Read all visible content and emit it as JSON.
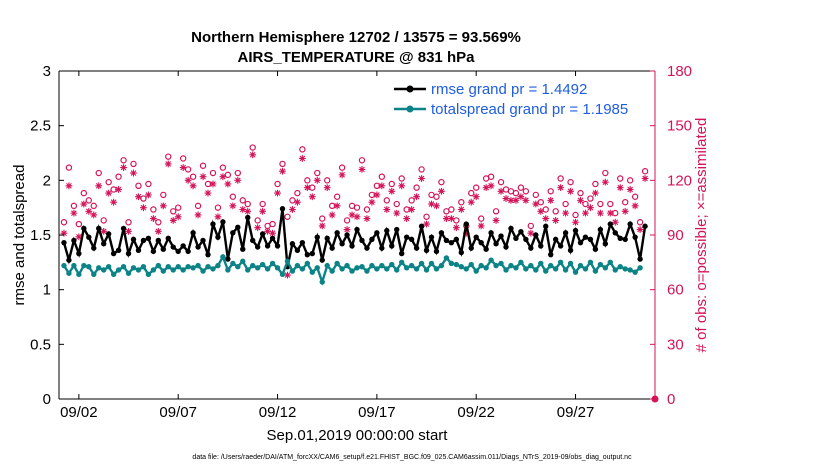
{
  "chart_data": {
    "type": "line",
    "title": "Northern Hemisphere 12702 / 13575 = 93.569%",
    "subtitle": "AIRS_TEMPERATURE @ 831 hPa",
    "xlabel": "Sep.01,2019 00:00:00 start",
    "ylabel_left": "rmse and totalspread",
    "ylabel_right": "# of obs: o=possible; ×=assimilated",
    "footnote": "data file: /Users/raeder/DAI/ATM_forcXX/CAM6_setup/f.e21.FHIST_BGC.f09_025.CAM6assim.011/Diags_NTrS_2019-09/obs_diag_output.nc",
    "x_tick_labels": [
      "09/02",
      "09/07",
      "09/12",
      "09/17",
      "09/22",
      "09/27"
    ],
    "x_tick_days": [
      2,
      7,
      12,
      17,
      22,
      27
    ],
    "xlim_days": [
      1.0,
      31.0
    ],
    "ylim_left": [
      0,
      3
    ],
    "yticks_left": [
      "0",
      "0.5",
      "1",
      "1.5",
      "2",
      "2.5",
      "3"
    ],
    "ylim_right": [
      0,
      180
    ],
    "yticks_right": [
      "0",
      "30",
      "60",
      "90",
      "120",
      "150",
      "180"
    ],
    "x_days": [
      1.25,
      1.5,
      1.75,
      2.0,
      2.25,
      2.5,
      2.75,
      3.0,
      3.25,
      3.5,
      3.75,
      4.0,
      4.25,
      4.5,
      4.75,
      5.0,
      5.25,
      5.5,
      5.75,
      6.0,
      6.25,
      6.5,
      6.75,
      7.0,
      7.25,
      7.5,
      7.75,
      8.0,
      8.25,
      8.5,
      8.75,
      9.0,
      9.25,
      9.5,
      9.75,
      10.0,
      10.25,
      10.5,
      10.75,
      11.0,
      11.25,
      11.5,
      11.75,
      12.0,
      12.25,
      12.5,
      12.75,
      13.0,
      13.25,
      13.5,
      13.75,
      14.0,
      14.25,
      14.5,
      14.75,
      15.0,
      15.25,
      15.5,
      15.75,
      16.0,
      16.25,
      16.5,
      16.75,
      17.0,
      17.25,
      17.5,
      17.75,
      18.0,
      18.25,
      18.5,
      18.75,
      19.0,
      19.25,
      19.5,
      19.75,
      20.0,
      20.25,
      20.5,
      20.75,
      21.0,
      21.25,
      21.5,
      21.75,
      22.0,
      22.25,
      22.5,
      22.75,
      23.0,
      23.25,
      23.5,
      23.75,
      24.0,
      24.25,
      24.5,
      24.75,
      25.0,
      25.25,
      25.5,
      25.75,
      26.0,
      26.25,
      26.5,
      26.75,
      27.0,
      27.25,
      27.5,
      27.75,
      28.0,
      28.25,
      28.5,
      28.75,
      29.0,
      29.25,
      29.5,
      29.75,
      30.0,
      30.25,
      30.5,
      30.75
    ],
    "series": [
      {
        "name": "rmse grand pr = 1.4492",
        "color": "#000000",
        "axis": "left",
        "marker": "dot",
        "values": [
          1.43,
          1.27,
          1.45,
          1.33,
          1.56,
          1.48,
          1.38,
          1.56,
          1.42,
          1.51,
          1.33,
          1.36,
          1.56,
          1.33,
          1.46,
          1.36,
          1.45,
          1.47,
          1.35,
          1.45,
          1.37,
          1.47,
          1.39,
          1.35,
          1.4,
          1.35,
          1.52,
          1.39,
          1.45,
          1.32,
          1.6,
          1.48,
          1.62,
          1.28,
          1.52,
          1.57,
          1.37,
          1.66,
          1.45,
          1.39,
          1.51,
          1.4,
          1.47,
          1.4,
          1.74,
          1.21,
          1.42,
          1.36,
          1.43,
          1.32,
          1.33,
          1.48,
          1.27,
          1.47,
          1.38,
          1.52,
          1.42,
          1.5,
          1.4,
          1.55,
          1.45,
          1.38,
          1.46,
          1.52,
          1.38,
          1.54,
          1.4,
          1.55,
          1.33,
          1.48,
          1.46,
          1.38,
          1.58,
          1.36,
          1.48,
          1.35,
          1.52,
          1.45,
          1.43,
          1.46,
          1.34,
          1.6,
          1.38,
          1.48,
          1.43,
          1.37,
          1.52,
          1.42,
          1.49,
          1.39,
          1.56,
          1.47,
          1.53,
          1.46,
          1.38,
          1.5,
          1.4,
          1.58,
          1.32,
          1.46,
          1.4,
          1.52,
          1.36,
          1.54,
          1.43,
          1.48,
          1.46,
          1.37,
          1.55,
          1.42,
          1.6,
          1.52,
          1.47,
          1.46,
          1.6,
          1.48,
          1.28,
          1.58
        ]
      },
      {
        "name": "totalspread grand pr = 1.1985",
        "color": "#0c8487",
        "axis": "left",
        "marker": "dot",
        "values": [
          1.22,
          1.15,
          1.22,
          1.14,
          1.22,
          1.21,
          1.14,
          1.2,
          1.18,
          1.21,
          1.14,
          1.18,
          1.21,
          1.15,
          1.2,
          1.18,
          1.21,
          1.14,
          1.18,
          1.22,
          1.17,
          1.21,
          1.18,
          1.21,
          1.18,
          1.21,
          1.2,
          1.22,
          1.17,
          1.21,
          1.19,
          1.22,
          1.3,
          1.18,
          1.24,
          1.21,
          1.26,
          1.18,
          1.22,
          1.2,
          1.23,
          1.19,
          1.24,
          1.2,
          1.14,
          1.26,
          1.17,
          1.22,
          1.19,
          1.24,
          1.16,
          1.2,
          1.07,
          1.22,
          1.17,
          1.24,
          1.19,
          1.22,
          1.17,
          1.2,
          1.21,
          1.17,
          1.22,
          1.19,
          1.22,
          1.19,
          1.23,
          1.18,
          1.25,
          1.2,
          1.22,
          1.19,
          1.24,
          1.18,
          1.24,
          1.19,
          1.22,
          1.29,
          1.24,
          1.23,
          1.21,
          1.19,
          1.23,
          1.17,
          1.22,
          1.2,
          1.27,
          1.22,
          1.24,
          1.18,
          1.22,
          1.2,
          1.25,
          1.19,
          1.22,
          1.18,
          1.24,
          1.17,
          1.22,
          1.19,
          1.25,
          1.18,
          1.24,
          1.16,
          1.22,
          1.19,
          1.25,
          1.17,
          1.23,
          1.2,
          1.25,
          1.18,
          1.21,
          1.19,
          1.18,
          1.16,
          1.2
        ]
      },
      {
        "name": "# obs possible",
        "color": "#d4145a",
        "axis": "right",
        "marker": "circle",
        "values": [
          97,
          127,
          106,
          96,
          113,
          109,
          106,
          124,
          98,
          119,
          115,
          122,
          131,
          97,
          129,
          117,
          110,
          118,
          104,
          97,
          112,
          133,
          103,
          105,
          132,
          126,
          122,
          106,
          128,
          118,
          124,
          105,
          127,
          123,
          111,
          124,
          109,
          107,
          138,
          98,
          107,
          95,
          96,
          118,
          129,
          100,
          109,
          113,
          137,
          120,
          116,
          124,
          99,
          120,
          106,
          111,
          127,
          98,
          106,
          105,
          131,
          104,
          112,
          117,
          122,
          109,
          118,
          107,
          121,
          104,
          109,
          116,
          126,
          100,
          112,
          111,
          119,
          103,
          104,
          98,
          108,
          95,
          113,
          116,
          99,
          121,
          122,
          103,
          119,
          115,
          114,
          113,
          116,
          114,
          95,
          112,
          108,
          104,
          114,
          103,
          121,
          107,
          119,
          101,
          113,
          107,
          110,
          118,
          107,
          124,
          107,
          102,
          121,
          108,
          120,
          111,
          97,
          125
        ]
      },
      {
        "name": "# obs assimilated",
        "color": "#d4145a",
        "axis": "right",
        "marker": "asterisk",
        "values": [
          91,
          117,
          102,
          89,
          107,
          103,
          101,
          117,
          92,
          113,
          108,
          115,
          127,
          92,
          124,
          111,
          105,
          112,
          99,
          92,
          106,
          129,
          98,
          100,
          127,
          120,
          117,
          101,
          122,
          113,
          118,
          100,
          122,
          118,
          106,
          120,
          104,
          103,
          134,
          94,
          103,
          92,
          91,
          113,
          125,
          68,
          104,
          108,
          132,
          116,
          111,
          120,
          95,
          116,
          101,
          106,
          123,
          93,
          101,
          100,
          126,
          99,
          108,
          112,
          117,
          104,
          114,
          102,
          117,
          99,
          104,
          111,
          121,
          96,
          107,
          106,
          114,
          99,
          99,
          94,
          104,
          91,
          108,
          111,
          95,
          116,
          117,
          98,
          114,
          110,
          109,
          109,
          111,
          109,
          91,
          107,
          103,
          99,
          109,
          98,
          116,
          102,
          114,
          97,
          109,
          102,
          105,
          113,
          102,
          119,
          102,
          97,
          116,
          103,
          115,
          106,
          93,
          121
        ]
      }
    ],
    "legend_position": "top-right"
  }
}
